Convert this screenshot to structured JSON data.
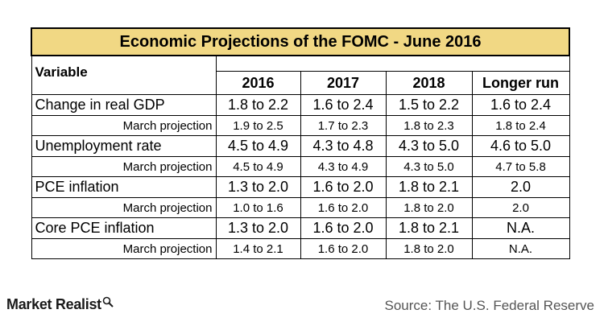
{
  "chart_data": {
    "type": "table",
    "title": "Economic Projections of the FOMC - June 2016",
    "variable_header": "Variable",
    "columns": [
      "2016",
      "2017",
      "2018",
      "Longer run"
    ],
    "rows": [
      {
        "label": "Change in real GDP",
        "kind": "main",
        "values": [
          "1.8 to 2.2",
          "1.6 to 2.4",
          "1.5 to 2.2",
          "1.6 to 2.4"
        ]
      },
      {
        "label": "March projection",
        "kind": "sub",
        "values": [
          "1.9 to 2.5",
          "1.7 to 2.3",
          "1.8 to 2.3",
          "1.8 to 2.4"
        ]
      },
      {
        "label": "Unemployment rate",
        "kind": "main",
        "values": [
          "4.5 to 4.9",
          "4.3 to 4.8",
          "4.3 to 5.0",
          "4.6 to 5.0"
        ]
      },
      {
        "label": "March projection",
        "kind": "sub",
        "values": [
          "4.5 to 4.9",
          "4.3 to 4.9",
          "4.3 to 5.0",
          "4.7 to 5.8"
        ]
      },
      {
        "label": "PCE inflation",
        "kind": "main",
        "values": [
          "1.3 to 2.0",
          "1.6 to 2.0",
          "1.8 to 2.1",
          "2.0"
        ]
      },
      {
        "label": "March projection",
        "kind": "sub",
        "values": [
          "1.0 to 1.6",
          "1.6 to 2.0",
          "1.8 to 2.0",
          "2.0"
        ]
      },
      {
        "label": "Core PCE inflation",
        "kind": "main",
        "values": [
          "1.3 to 2.0",
          "1.6 to 2.0",
          "1.8 to 2.1",
          "N.A."
        ]
      },
      {
        "label": "March projection",
        "kind": "sub",
        "values": [
          "1.4 to 2.1",
          "1.6 to 2.0",
          "1.8 to 2.0",
          "N.A."
        ]
      }
    ],
    "header_color": "#f1d884"
  },
  "branding": {
    "logo_text": "Market Realist",
    "logo_icon": "magnifier-icon"
  },
  "source_text": "Source: The U.S. Federal Reserve"
}
